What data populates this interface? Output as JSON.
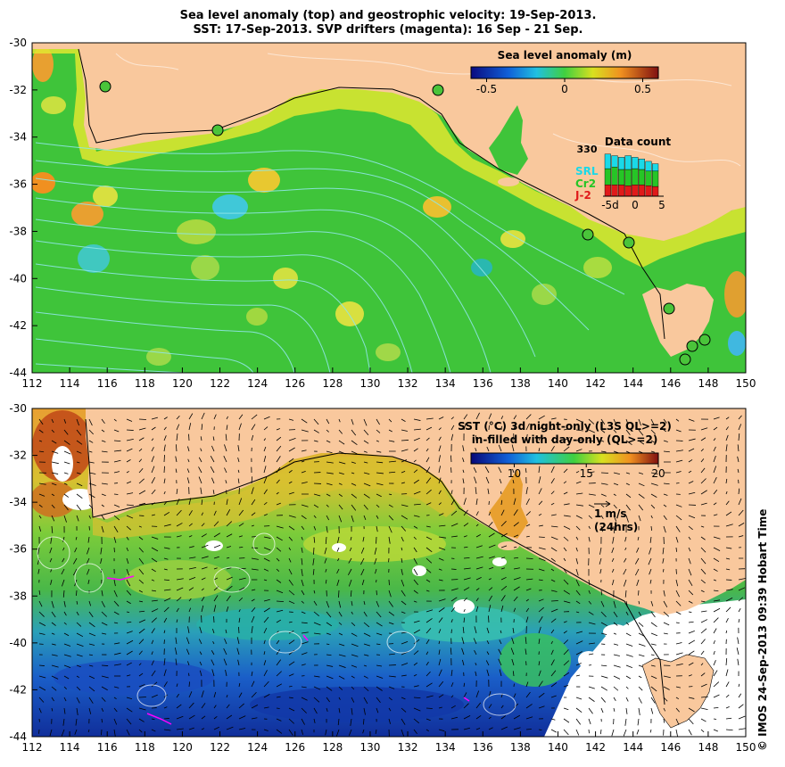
{
  "titles": {
    "line1": "Sea level anomaly (top) and geostrophic velocity: 19-Sep-2013.",
    "line2": "SST: 17-Sep-2013. SVP drifters (magenta): 16 Sep - 21 Sep."
  },
  "credit": "© IMOS 24-Sep-2013 09:39 Hobart Time",
  "colors": {
    "land": "#f9c89d",
    "sla_background": "#3fc43a",
    "sst_warm": "#e89a2c",
    "sst_mid": "#5ac23a",
    "sst_cool": "#1f8ad0",
    "sst_cold": "#1040b0",
    "velocity_contour": "#7fe0e0",
    "drifters": "#ff00ff",
    "count_srl": "#1ad9e8",
    "count_cr2": "#26c526",
    "count_j2": "#e01a1a"
  },
  "chart_data": [
    {
      "type": "heatmap",
      "name": "Sea level anomaly panel",
      "x_ticks": [
        "112",
        "114",
        "116",
        "118",
        "120",
        "122",
        "124",
        "126",
        "128",
        "130",
        "132",
        "134",
        "136",
        "138",
        "140",
        "142",
        "144",
        "146",
        "148",
        "150"
      ],
      "y_ticks": [
        "-30",
        "-32",
        "-34",
        "-36",
        "-38",
        "-40",
        "-42",
        "-44"
      ],
      "xlim": [
        112,
        150
      ],
      "ylim": [
        -44,
        -30
      ],
      "colorbar": {
        "label": "Sea level anomaly (m)",
        "ticks": [
          "-0.5",
          "0",
          "0.5"
        ],
        "range": [
          -0.6,
          0.6
        ]
      },
      "data_count": {
        "title": "Data count",
        "top_tick": "330",
        "series": [
          "SRL",
          "Cr2",
          "J-2"
        ],
        "x_ticks": [
          "-5d",
          "0",
          "5"
        ],
        "bars": [
          {
            "SRL": 90,
            "Cr2": 100,
            "J-2": 70
          },
          {
            "SRL": 70,
            "Cr2": 110,
            "J-2": 70
          },
          {
            "SRL": 75,
            "Cr2": 95,
            "J-2": 70
          },
          {
            "SRL": 85,
            "Cr2": 100,
            "J-2": 65
          },
          {
            "SRL": 70,
            "Cr2": 100,
            "J-2": 70
          },
          {
            "SRL": 65,
            "Cr2": 95,
            "J-2": 70
          },
          {
            "SRL": 60,
            "Cr2": 90,
            "J-2": 65
          },
          {
            "SRL": 45,
            "Cr2": 95,
            "J-2": 60
          }
        ]
      }
    },
    {
      "type": "heatmap",
      "name": "SST panel",
      "x_ticks": [
        "112",
        "114",
        "116",
        "118",
        "120",
        "122",
        "124",
        "126",
        "128",
        "130",
        "132",
        "134",
        "136",
        "138",
        "140",
        "142",
        "144",
        "146",
        "148",
        "150"
      ],
      "y_ticks": [
        "-30",
        "-32",
        "-34",
        "-36",
        "-38",
        "-40",
        "-42",
        "-44"
      ],
      "xlim": [
        112,
        150
      ],
      "ylim": [
        -44,
        -30
      ],
      "colorbar": {
        "label_line1": "SST (°C)  3d night-only (L3S QL>=2)",
        "label_line2": "in-filled with day-only (QL>=2)",
        "ticks": [
          "10",
          "15",
          "20"
        ],
        "range": [
          7,
          20
        ]
      },
      "velocity_scale": {
        "label_line1": "1 m/s",
        "label_line2": "(24hrs)"
      }
    }
  ]
}
